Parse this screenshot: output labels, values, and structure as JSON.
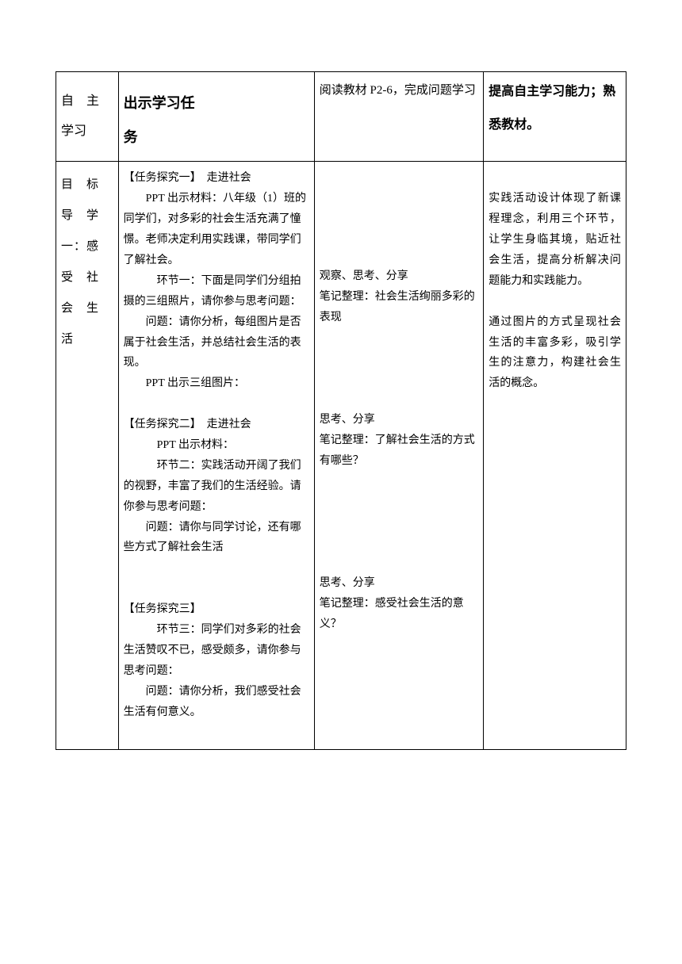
{
  "row1": {
    "col1_line1": "自　主",
    "col1_line2": "学习",
    "col2_line1": "出示学习任",
    "col2_line2": "务",
    "col3": "阅读教材 P2-6，完成问题学习",
    "col4": "提高自主学习能力；熟悉教材。"
  },
  "row2": {
    "col1_l1": "目　标",
    "col1_l2": "导　学",
    "col1_l3": "一：感",
    "col1_l4": "受　社",
    "col1_l5": "会　生",
    "col1_l6": "活",
    "task1_title": "【任务探究一】　走进社会",
    "task1_p1": "PPT 出示材料：八年级（1）班的同学们，对多彩的社会生活充满了憧憬。老师决定利用实践课，带同学们了解社会。",
    "task1_p2": "环节一：下面是同学们分组拍摄的三组照片，请你参与思考问题：",
    "task1_p3": "问题：请你分析，每组图片是否属于社会生活，并总结社会生活的表现。",
    "task1_p4": "PPT 出示三组图片：",
    "task2_title": "【任务探究二】　走进社会",
    "task2_p1": "PPT 出示材料：",
    "task2_p2": "环节二：实践活动开阔了我们的视野，丰富了我们的生活经验。请你参与思考问题：",
    "task2_p3": "问题：请你与同学讨论，还有哪些方式了解社会生活",
    "task3_title": "【任务探究三】",
    "task3_p1": "环节三：同学们对多彩的社会生活赞叹不已，感受颇多，请你参与思考问题：",
    "task3_p2": "问题：请你分析，我们感受社会生活有何意义。",
    "c3_b1_l1": "观察、思考、分享",
    "c3_b1_l2": "笔记整理：社会生活绚丽多彩的表现",
    "c3_b2_l1": "思考、分享",
    "c3_b2_l2": "笔记整理：了解社会生活的方式有哪些？",
    "c3_b3_l1": "思考、分享",
    "c3_b3_l2": "笔记整理：感受社会生活的意义？",
    "c4_p1": "实践活动设计体现了新课程理念，利用三个环节，让学生身临其境，贴近社会生活，提高分析解决问题能力和实践能力。",
    "c4_p2": "通过图片的方式呈现社会生活的丰富多彩，吸引学生的注意力，构建社会生活的概念。"
  }
}
